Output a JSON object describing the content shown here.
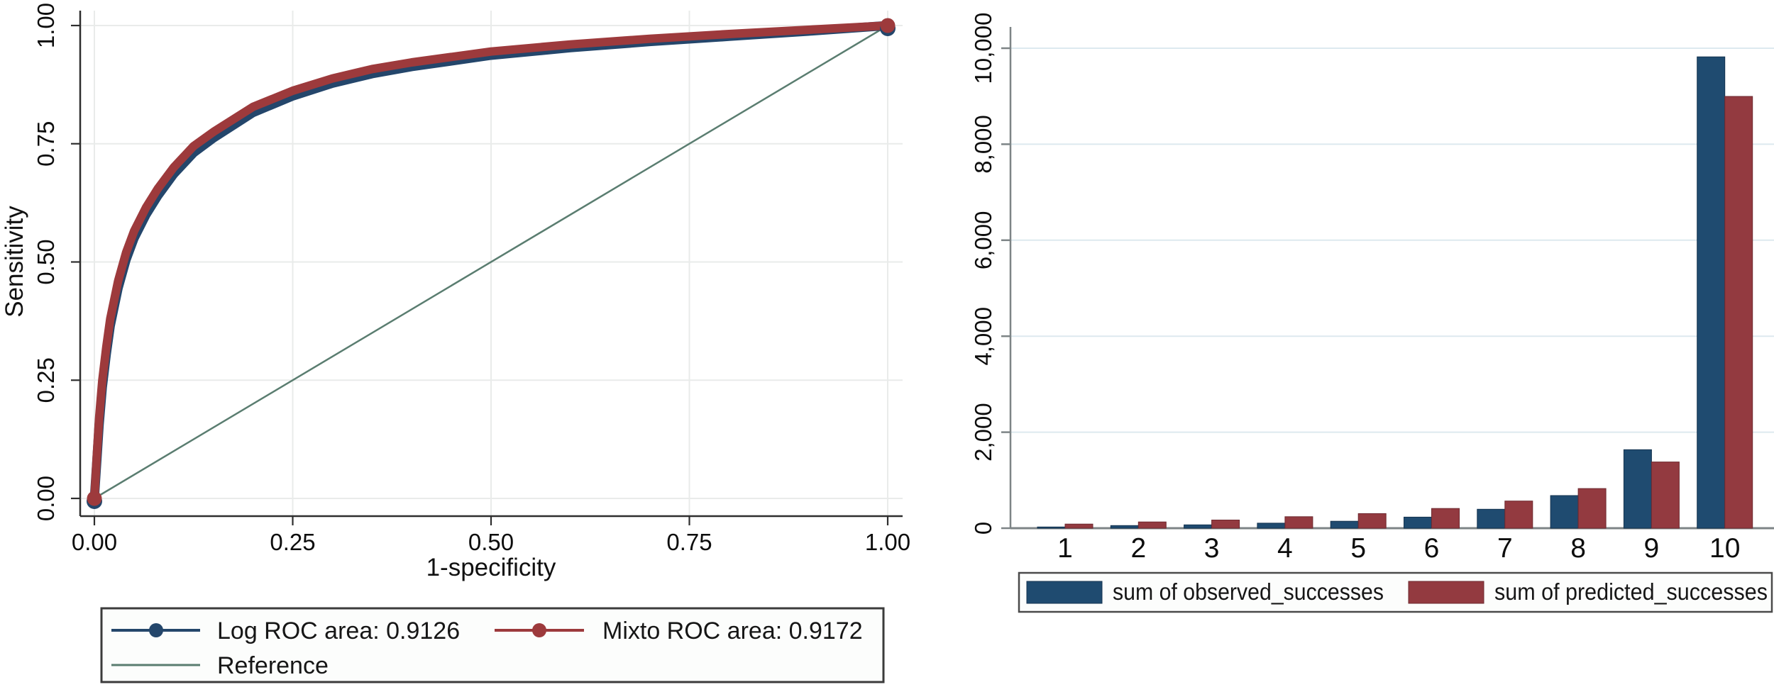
{
  "figure": {
    "background": "#ffffff",
    "description": "Two statistical charts: ROC curve comparison and grouped bar chart of observed vs predicted successes"
  },
  "chart_data": [
    {
      "type": "line",
      "title": "",
      "xlabel": "1-specificity",
      "ylabel": "Sensitivity",
      "xlim": [
        0,
        1
      ],
      "ylim": [
        0,
        1
      ],
      "xticks": [
        "0.00",
        "0.25",
        "0.50",
        "0.75",
        "1.00"
      ],
      "yticks": [
        "0.00",
        "0.25",
        "0.50",
        "0.75",
        "1.00"
      ],
      "grid": true,
      "grid_color": "#e9ebea",
      "axis_color": "#2e2e2e",
      "legend_position": "bottom-left-box",
      "series": [
        {
          "name": "Log ROC area: 0.9126",
          "auc": 0.9126,
          "color": "#24466b",
          "line_width": 13,
          "marker": true,
          "x": [
            0,
            0.003,
            0.006,
            0.01,
            0.015,
            0.02,
            0.03,
            0.04,
            0.05,
            0.065,
            0.08,
            0.1,
            0.125,
            0.15,
            0.2,
            0.25,
            0.3,
            0.35,
            0.4,
            0.5,
            0.6,
            0.7,
            0.8,
            0.9,
            1
          ],
          "y": [
            0,
            0.078,
            0.155,
            0.235,
            0.305,
            0.365,
            0.445,
            0.505,
            0.55,
            0.6,
            0.64,
            0.686,
            0.731,
            0.762,
            0.816,
            0.851,
            0.878,
            0.898,
            0.913,
            0.937,
            0.953,
            0.966,
            0.977,
            0.988,
            1
          ]
        },
        {
          "name": "Mixto ROC area: 0.9172",
          "auc": 0.9172,
          "color": "#9d3a3c",
          "line_width": 12,
          "marker": true,
          "x": [
            0,
            0.003,
            0.006,
            0.01,
            0.015,
            0.02,
            0.03,
            0.04,
            0.05,
            0.065,
            0.08,
            0.1,
            0.125,
            0.15,
            0.2,
            0.25,
            0.3,
            0.35,
            0.4,
            0.5,
            0.6,
            0.7,
            0.8,
            0.9,
            1
          ],
          "y": [
            0,
            0.09,
            0.17,
            0.25,
            0.32,
            0.38,
            0.46,
            0.52,
            0.565,
            0.615,
            0.655,
            0.7,
            0.745,
            0.775,
            0.828,
            0.862,
            0.888,
            0.908,
            0.922,
            0.945,
            0.96,
            0.972,
            0.982,
            0.991,
            1
          ]
        },
        {
          "name": "Reference",
          "color": "#5a7d70",
          "line_width": 2.5,
          "marker": false,
          "x": [
            0,
            1
          ],
          "y": [
            0,
            1
          ]
        }
      ]
    },
    {
      "type": "bar",
      "title": "",
      "xlabel": "",
      "ylabel": "",
      "categories": [
        "1",
        "2",
        "3",
        "4",
        "5",
        "6",
        "7",
        "8",
        "9",
        "10"
      ],
      "yticks": [
        0,
        2000,
        4000,
        6000,
        8000,
        10000
      ],
      "ytick_labels": [
        "0",
        "2,000",
        "4,000",
        "6,000",
        "8,000",
        "10,000"
      ],
      "ylim": [
        0,
        10000
      ],
      "grid": true,
      "grid_color": "#dde9ef",
      "axis_color": "#7d8486",
      "legend_position": "bottom-box",
      "series": [
        {
          "name": "sum of observed_successes",
          "color": "#1f4b70",
          "edge_color": "#14334f",
          "values": [
            25,
            55,
            70,
            105,
            145,
            230,
            395,
            680,
            1635,
            9820
          ]
        },
        {
          "name": "sum of predicted_successes",
          "color": "#933a40",
          "edge_color": "#6e2a30",
          "values": [
            85,
            130,
            170,
            240,
            305,
            410,
            565,
            825,
            1380,
            8995
          ]
        }
      ]
    }
  ]
}
